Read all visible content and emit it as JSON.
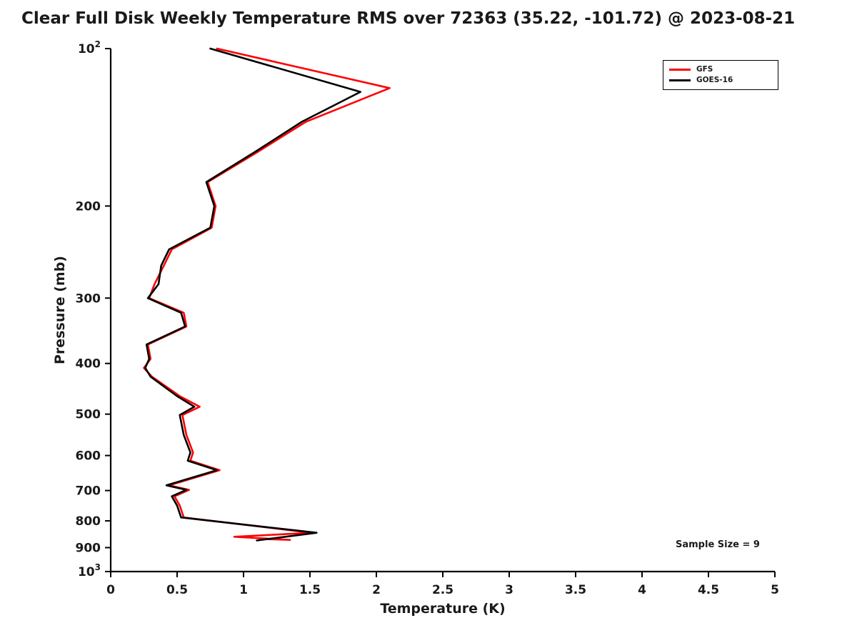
{
  "title": "Clear Full Disk Weekly Temperature RMS over 72363 (35.22, -101.72) @ 2023-08-21",
  "annotation": "Sample Size = 9",
  "axis": {
    "xlabel": "Temperature (K)",
    "ylabel": "Pressure (mb)"
  },
  "legend": {
    "entries": [
      {
        "label": "GFS",
        "color": "#ff0000"
      },
      {
        "label": "GOES-16",
        "color": "#000000"
      }
    ]
  },
  "chart_data": {
    "type": "line",
    "title": "Clear Full Disk Weekly Temperature RMS over 72363 (35.22, -101.72) @ 2023-08-21",
    "xlabel": "Temperature (K)",
    "ylabel": "Pressure (mb)",
    "xlim": [
      0,
      5
    ],
    "ylim": [
      100,
      1000
    ],
    "y_scale": "log",
    "y_inverted": true,
    "grid": false,
    "legend_position": "top-right",
    "annotation": "Sample Size = 9",
    "x_ticks": [
      0,
      0.5,
      1,
      1.5,
      2,
      2.5,
      3,
      3.5,
      4,
      4.5,
      5
    ],
    "y_ticks": [
      100,
      200,
      300,
      400,
      500,
      600,
      700,
      800,
      900,
      1000
    ],
    "series": [
      {
        "name": "GFS",
        "color": "#ff0000",
        "points": [
          [
            0.8,
            100
          ],
          [
            2.1,
            119
          ],
          [
            1.47,
            138
          ],
          [
            1.1,
            158
          ],
          [
            0.73,
            180
          ],
          [
            0.79,
            200
          ],
          [
            0.76,
            220
          ],
          [
            0.46,
            242
          ],
          [
            0.4,
            260
          ],
          [
            0.33,
            282
          ],
          [
            0.29,
            300
          ],
          [
            0.55,
            320
          ],
          [
            0.57,
            340
          ],
          [
            0.28,
            368
          ],
          [
            0.3,
            392
          ],
          [
            0.25,
            408
          ],
          [
            0.31,
            424
          ],
          [
            0.52,
            462
          ],
          [
            0.67,
            484
          ],
          [
            0.54,
            502
          ],
          [
            0.57,
            548
          ],
          [
            0.62,
            592
          ],
          [
            0.6,
            614
          ],
          [
            0.82,
            640
          ],
          [
            0.44,
            684
          ],
          [
            0.59,
            698
          ],
          [
            0.48,
            718
          ],
          [
            0.52,
            748
          ],
          [
            0.55,
            788
          ],
          [
            1.51,
            843
          ],
          [
            0.93,
            858
          ],
          [
            1.35,
            870
          ],
          [
            1.12,
            866
          ]
        ]
      },
      {
        "name": "GOES-16",
        "color": "#000000",
        "points": [
          [
            0.75,
            100
          ],
          [
            1.88,
            121
          ],
          [
            1.44,
            138
          ],
          [
            1.08,
            158
          ],
          [
            0.72,
            180
          ],
          [
            0.78,
            200
          ],
          [
            0.75,
            220
          ],
          [
            0.44,
            242
          ],
          [
            0.38,
            260
          ],
          [
            0.36,
            282
          ],
          [
            0.28,
            300
          ],
          [
            0.53,
            320
          ],
          [
            0.56,
            340
          ],
          [
            0.27,
            368
          ],
          [
            0.29,
            392
          ],
          [
            0.26,
            408
          ],
          [
            0.3,
            424
          ],
          [
            0.5,
            462
          ],
          [
            0.63,
            484
          ],
          [
            0.52,
            502
          ],
          [
            0.55,
            548
          ],
          [
            0.6,
            592
          ],
          [
            0.58,
            614
          ],
          [
            0.8,
            640
          ],
          [
            0.42,
            684
          ],
          [
            0.57,
            698
          ],
          [
            0.46,
            718
          ],
          [
            0.5,
            748
          ],
          [
            0.53,
            788
          ],
          [
            1.55,
            843
          ],
          [
            1.1,
            872
          ]
        ]
      }
    ]
  }
}
